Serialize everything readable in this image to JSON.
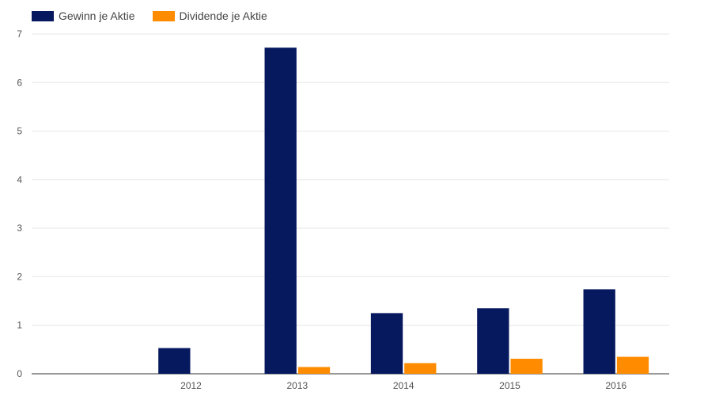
{
  "chart_data": {
    "type": "bar",
    "categories": [
      "",
      "2012",
      "2013",
      "2014",
      "2015",
      "2016"
    ],
    "series": [
      {
        "name": "Gewinn je Aktie",
        "color": "#06185e",
        "values": [
          null,
          0.53,
          6.72,
          1.25,
          1.35,
          1.74
        ]
      },
      {
        "name": "Dividende je Aktie",
        "color": "#ff8c00",
        "values": [
          null,
          null,
          0.14,
          0.22,
          0.31,
          0.35
        ]
      }
    ],
    "ylim": [
      0,
      7
    ],
    "yticks": [
      "0",
      "1",
      "2",
      "3",
      "4",
      "5",
      "6",
      "7"
    ],
    "grid": true,
    "legend_position": "top-left",
    "title": "",
    "xlabel": "",
    "ylabel": ""
  }
}
